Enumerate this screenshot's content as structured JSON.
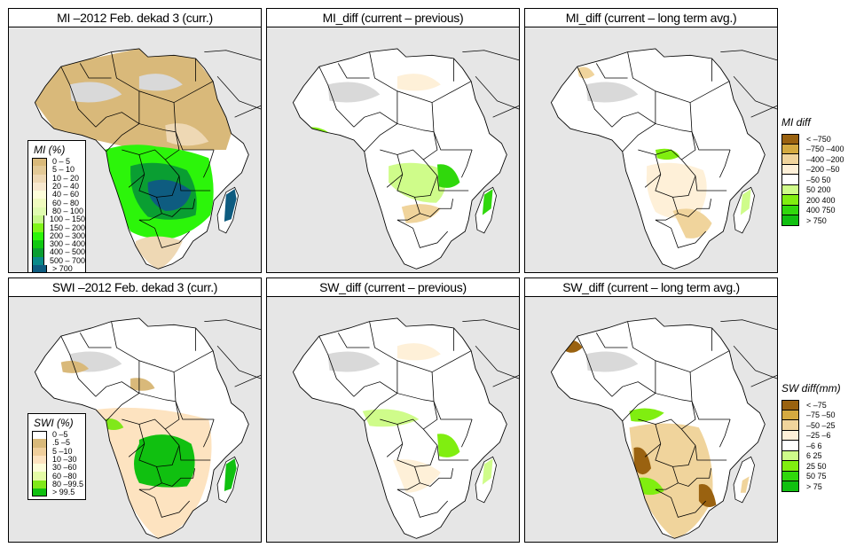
{
  "figure": {
    "panels": [
      {
        "id": "mi-current",
        "title": "MI –2012 Feb. dekad 3 (curr.)",
        "variable": "MI",
        "mode": "absolute"
      },
      {
        "id": "mi-diff-previous",
        "title": "MI_diff (current – previous)",
        "variable": "MI_diff",
        "mode": "diff-previous"
      },
      {
        "id": "mi-diff-longterm",
        "title": "MI_diff (current – long term avg.)",
        "variable": "MI_diff",
        "mode": "diff-longterm"
      },
      {
        "id": "swi-current",
        "title": "SWI –2012 Feb. dekad 3 (curr.)",
        "variable": "SWI",
        "mode": "absolute"
      },
      {
        "id": "sw-diff-previous",
        "title": "SW_diff (current – previous)",
        "variable": "SW_diff",
        "mode": "diff-previous"
      },
      {
        "id": "sw-diff-longterm",
        "title": "SW_diff (current – long term avg.)",
        "variable": "SW_diff",
        "mode": "diff-longterm"
      }
    ],
    "background_colors": {
      "ocean": "#e6e6e6",
      "nodata": "#d9d9d9",
      "border": "#000000"
    }
  },
  "legends": {
    "mi": {
      "title": "MI (%)",
      "entries": [
        {
          "label": "0 – 5",
          "color": "#d9b97a"
        },
        {
          "label": "5 – 10",
          "color": "#e3c996"
        },
        {
          "label": "10 – 20",
          "color": "#eed8b4"
        },
        {
          "label": "20 – 40",
          "color": "#f7e8cf"
        },
        {
          "label": "40 – 60",
          "color": "#fdfdd9"
        },
        {
          "label": "60 – 80",
          "color": "#f0fbbf"
        },
        {
          "label": "80 – 100",
          "color": "#e0fbb0"
        },
        {
          "label": "100 – 150",
          "color": "#c6f78a"
        },
        {
          "label": "150 – 200",
          "color": "#80f51a"
        },
        {
          "label": "200 – 300",
          "color": "#2cf50a"
        },
        {
          "label": "300 – 400",
          "color": "#10c812"
        },
        {
          "label": "400 – 500",
          "color": "#0a9e32"
        },
        {
          "label": "500 – 700",
          "color": "#0a8a8a"
        },
        {
          "label": "> 700",
          "color": "#0e5c80"
        }
      ]
    },
    "swi": {
      "title": "SWI (%)",
      "entries": [
        {
          "label": "0 –5",
          "color": "#ffffff"
        },
        {
          "label": ".5 –5",
          "color": "#d9b97a"
        },
        {
          "label": "5 –10",
          "color": "#f0cf9c"
        },
        {
          "label": "10 –30",
          "color": "#fde3c0"
        },
        {
          "label": "30 –60",
          "color": "#fdfdd9"
        },
        {
          "label": "60 –80",
          "color": "#e4fba6"
        },
        {
          "label": "80 –99.5",
          "color": "#80e81a"
        },
        {
          "label": "> 99.5",
          "color": "#10c010"
        }
      ]
    },
    "mi_diff": {
      "title": "MI diff",
      "entries": [
        {
          "label": "< –750",
          "color": "#9a6210"
        },
        {
          "label": "–750 –400",
          "color": "#d4aa40"
        },
        {
          "label": "–400 –200",
          "color": "#f0d49c"
        },
        {
          "label": "–200 –50",
          "color": "#fef0d8"
        },
        {
          "label": "–50  50",
          "color": "#ffffff"
        },
        {
          "label": " 50  200",
          "color": "#cffc8a"
        },
        {
          "label": "200  400",
          "color": "#80ee10"
        },
        {
          "label": "400  750",
          "color": "#30d80c"
        },
        {
          "label": "> 750",
          "color": "#10c010"
        }
      ]
    },
    "sw_diff": {
      "title": "SW diff(mm)",
      "entries": [
        {
          "label": "< –75",
          "color": "#9a6210"
        },
        {
          "label": "–75 –50",
          "color": "#d4aa40"
        },
        {
          "label": "–50 –25",
          "color": "#f0d49c"
        },
        {
          "label": "–25  –6",
          "color": "#fef0d8"
        },
        {
          "label": "–6  6",
          "color": "#ffffff"
        },
        {
          "label": " 6  25",
          "color": "#cffc8a"
        },
        {
          "label": "25  50",
          "color": "#80ee10"
        },
        {
          "label": "50  75",
          "color": "#30d80c"
        },
        {
          "label": "> 75",
          "color": "#10c010"
        }
      ]
    }
  }
}
